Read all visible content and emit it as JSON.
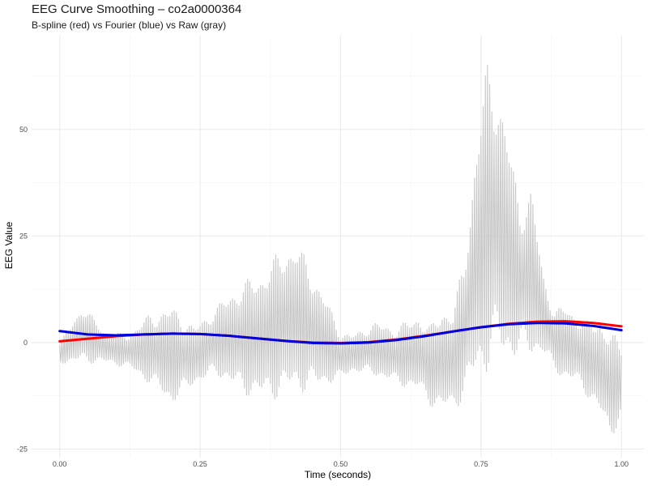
{
  "chart_data": {
    "type": "line",
    "title": "EEG Curve Smoothing – co2a0000364",
    "subtitle": "B-spline (red) vs Fourier (blue) vs Raw (gray)",
    "xlabel": "Time (seconds)",
    "ylabel": "EEG Value",
    "xlim": [
      -0.05,
      1.04
    ],
    "ylim": [
      -27,
      72
    ],
    "x_ticks": [
      0.0,
      0.25,
      0.5,
      0.75,
      1.0
    ],
    "x_tick_labels": [
      "0.00",
      "0.25",
      "0.50",
      "0.75",
      "1.00"
    ],
    "y_ticks": [
      -25,
      0,
      25,
      50
    ],
    "y_tick_labels": [
      "-25",
      "0",
      "25",
      "50"
    ],
    "grid": true,
    "legend": "none",
    "colors": {
      "raw": "#c8c8c8",
      "bspline": "#ff0000",
      "fourier": "#0000dd",
      "grid": "#ebebeb"
    },
    "series": [
      {
        "name": "Raw",
        "description_free": true,
        "x": [
          0.0,
          0.04,
          0.08,
          0.12,
          0.16,
          0.2,
          0.24,
          0.28,
          0.32,
          0.36,
          0.4,
          0.42,
          0.44,
          0.48,
          0.5,
          0.52,
          0.56,
          0.6,
          0.64,
          0.66,
          0.68,
          0.7,
          0.72,
          0.74,
          0.76,
          0.78,
          0.8,
          0.82,
          0.84,
          0.86,
          0.88,
          0.9,
          0.92,
          0.94,
          0.96,
          0.98,
          1.0
        ],
        "upper": [
          0,
          9,
          3,
          2,
          7,
          9,
          4,
          9,
          14,
          17,
          23,
          24,
          20,
          9,
          3,
          2,
          5,
          4,
          7,
          4,
          9,
          8,
          20,
          46,
          67,
          62,
          48,
          33,
          37,
          17,
          8,
          9,
          7,
          5,
          6,
          3,
          0
        ],
        "lower": [
          -5,
          -5,
          -5,
          -6,
          -10,
          -15,
          -10,
          -8,
          -12,
          -14,
          -13,
          -12,
          -12,
          -10,
          -9,
          -7,
          -8,
          -10,
          -12,
          -15,
          -17,
          -16,
          -14,
          -10,
          -8,
          -5,
          -5,
          -4,
          -4,
          -3,
          -7,
          -9,
          -10,
          -13,
          -17,
          -23,
          -18
        ]
      },
      {
        "name": "B-spline",
        "x": [
          0.0,
          0.05,
          0.1,
          0.15,
          0.2,
          0.25,
          0.3,
          0.35,
          0.4,
          0.45,
          0.5,
          0.55,
          0.6,
          0.65,
          0.7,
          0.75,
          0.8,
          0.85,
          0.9,
          0.95,
          1.0
        ],
        "values": [
          0.3,
          0.9,
          1.5,
          1.9,
          2.1,
          2.0,
          1.6,
          1.0,
          0.4,
          0.0,
          -0.1,
          0.1,
          0.7,
          1.6,
          2.6,
          3.6,
          4.4,
          4.9,
          5.0,
          4.6,
          3.8
        ]
      },
      {
        "name": "Fourier",
        "x": [
          0.0,
          0.05,
          0.1,
          0.15,
          0.2,
          0.25,
          0.3,
          0.35,
          0.4,
          0.45,
          0.5,
          0.55,
          0.6,
          0.65,
          0.7,
          0.75,
          0.8,
          0.85,
          0.9,
          0.95,
          1.0
        ],
        "values": [
          2.7,
          1.9,
          1.7,
          1.9,
          2.1,
          2.0,
          1.6,
          1.0,
          0.4,
          -0.1,
          -0.2,
          0.0,
          0.6,
          1.5,
          2.6,
          3.6,
          4.3,
          4.6,
          4.5,
          3.9,
          2.9
        ]
      }
    ]
  }
}
